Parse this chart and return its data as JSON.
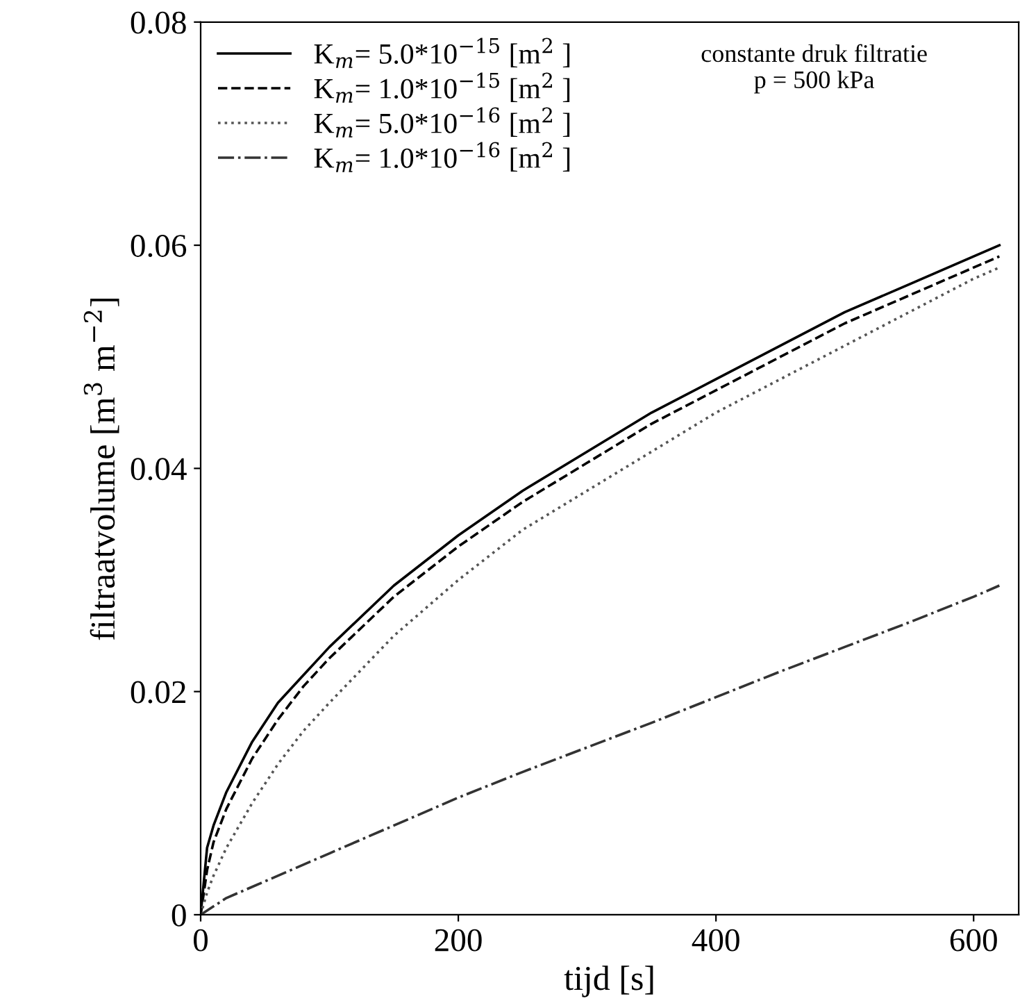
{
  "chart_data": {
    "type": "line",
    "xlabel": "tijd [s]",
    "ylabel": "filtraatvolume [m$^{3}$ m$^{−2}$]",
    "annotations": [
      "constante druk filtratie\np = 500 kPa"
    ],
    "xlim": [
      0,
      635
    ],
    "ylim": [
      0,
      0.08
    ],
    "xticks": [
      0,
      200,
      400,
      600
    ],
    "yticks": [
      0,
      0.02,
      0.04,
      0.06,
      0.08
    ],
    "grid": false,
    "legend": "top left",
    "marker": "none",
    "x": [
      0,
      5,
      10,
      20,
      40,
      60,
      80,
      100,
      150,
      200,
      250,
      300,
      350,
      400,
      450,
      500,
      550,
      600,
      620
    ],
    "series": [
      {
        "name": "K$_{m}$= 5.0*10$^{−15}$ [m$^{2}$ ]",
        "color": "#000000",
        "line_style": "solid",
        "values": [
          0,
          0.006,
          0.008,
          0.011,
          0.0155,
          0.019,
          0.0215,
          0.024,
          0.0295,
          0.034,
          0.038,
          0.0415,
          0.045,
          0.048,
          0.051,
          0.054,
          0.0565,
          0.059,
          0.06
        ]
      },
      {
        "name": "K$_{m}$= 1.0*10$^{−15}$ [m$^{2}$ ]",
        "color": "#000000",
        "line_style": "dashed",
        "values": [
          0,
          0.004,
          0.0065,
          0.0095,
          0.014,
          0.0175,
          0.0205,
          0.023,
          0.0285,
          0.033,
          0.037,
          0.0405,
          0.044,
          0.047,
          0.05,
          0.053,
          0.0555,
          0.058,
          0.059
        ]
      },
      {
        "name": "K$_{m}$= 5.0*10$^{−16}$ [m$^{2}$ ]",
        "color": "#555555",
        "line_style": "dotted",
        "values": [
          0,
          0.002,
          0.0035,
          0.006,
          0.01,
          0.0135,
          0.0165,
          0.019,
          0.025,
          0.03,
          0.0345,
          0.038,
          0.0415,
          0.045,
          0.048,
          0.051,
          0.054,
          0.057,
          0.058
        ]
      },
      {
        "name": "K$_{m}$= 1.0*10$^{−16}$ [m$^{2}$ ]",
        "color": "#333333",
        "line_style": "dashdot",
        "x": [
          0,
          20,
          50,
          100,
          150,
          200,
          250,
          300,
          350,
          400,
          450,
          500,
          550,
          600,
          620
        ],
        "values": [
          0,
          0.0015,
          0.003,
          0.0055,
          0.008,
          0.0105,
          0.0128,
          0.015,
          0.0172,
          0.0195,
          0.0218,
          0.024,
          0.0262,
          0.0285,
          0.0295
        ]
      }
    ]
  }
}
